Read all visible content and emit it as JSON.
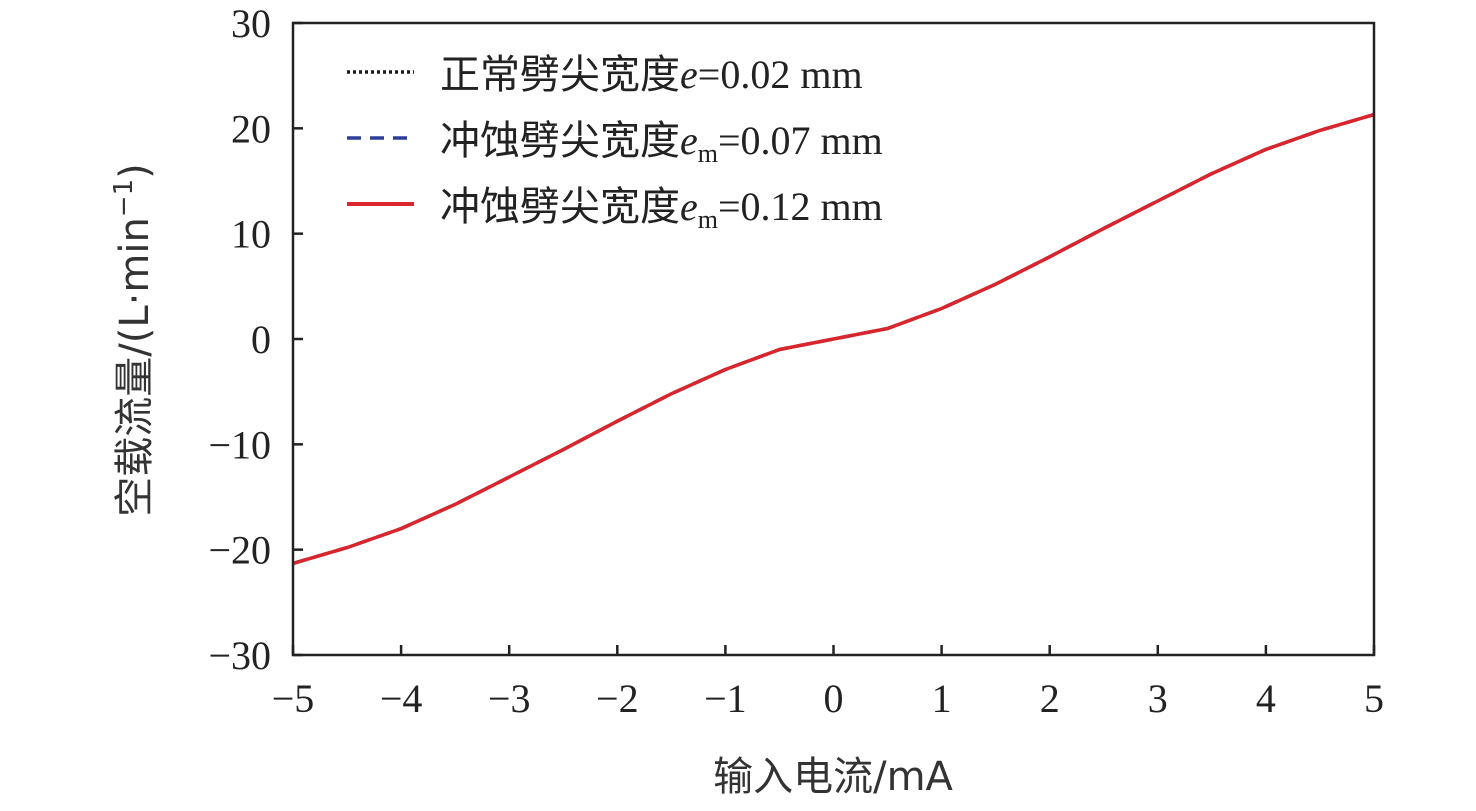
{
  "chart_data": {
    "type": "line",
    "xlabel": "输入电流/mA",
    "ylabel_main": "空载流量/(L·min",
    "ylabel_sup": "−1",
    "ylabel_close": ")",
    "xlim": [
      -5,
      5
    ],
    "ylim": [
      -30,
      30
    ],
    "x_ticks": [
      -5,
      -4,
      -3,
      -2,
      -1,
      0,
      1,
      2,
      3,
      4,
      5
    ],
    "x_tick_labels": [
      "−5",
      "−4",
      "−3",
      "−2",
      "−1",
      "0",
      "1",
      "2",
      "3",
      "4",
      "5"
    ],
    "y_ticks": [
      -30,
      -20,
      -10,
      0,
      10,
      20,
      30
    ],
    "y_tick_labels": [
      "−30",
      "−20",
      "−10",
      "0",
      "10",
      "20",
      "30"
    ],
    "grid": false,
    "legend_position": "top-left",
    "x": [
      -5,
      -4.5,
      -4,
      -3.5,
      -3,
      -2.5,
      -2,
      -1.5,
      -1,
      -0.5,
      0,
      0.5,
      1,
      1.5,
      2,
      2.5,
      3,
      3.5,
      4,
      4.5,
      5
    ],
    "series": [
      {
        "legend_prefix": "正常劈尖宽度",
        "legend_symbol": "e",
        "legend_sub": "",
        "legend_value": "=0.02 mm",
        "color": "#1a1a1a",
        "style": "dotted",
        "values": [
          -21.3,
          -19.8,
          -18.0,
          -15.7,
          -13.1,
          -10.5,
          -7.8,
          -5.2,
          -2.9,
          -1.0,
          0,
          1.0,
          2.9,
          5.2,
          7.8,
          10.5,
          13.1,
          15.7,
          18.0,
          19.8,
          21.3
        ]
      },
      {
        "legend_prefix": "冲蚀劈尖宽度",
        "legend_symbol": "e",
        "legend_sub": "m",
        "legend_value": "=0.07 mm",
        "color": "#2e3f9a",
        "style": "dashed",
        "values": [
          -21.3,
          -19.8,
          -18.0,
          -15.7,
          -13.1,
          -10.5,
          -7.8,
          -5.2,
          -2.9,
          -1.0,
          0,
          1.0,
          2.9,
          5.2,
          7.8,
          10.5,
          13.1,
          15.7,
          18.0,
          19.8,
          21.3
        ]
      },
      {
        "legend_prefix": "冲蚀劈尖宽度",
        "legend_symbol": "e",
        "legend_sub": "m",
        "legend_value": "=0.12 mm",
        "color": "#d8262c",
        "style": "solid",
        "values": [
          -21.3,
          -19.8,
          -18.0,
          -15.7,
          -13.1,
          -10.5,
          -7.8,
          -5.2,
          -2.9,
          -1.0,
          0,
          1.0,
          2.9,
          5.2,
          7.8,
          10.5,
          13.1,
          15.7,
          18.0,
          19.8,
          21.3
        ]
      }
    ]
  }
}
